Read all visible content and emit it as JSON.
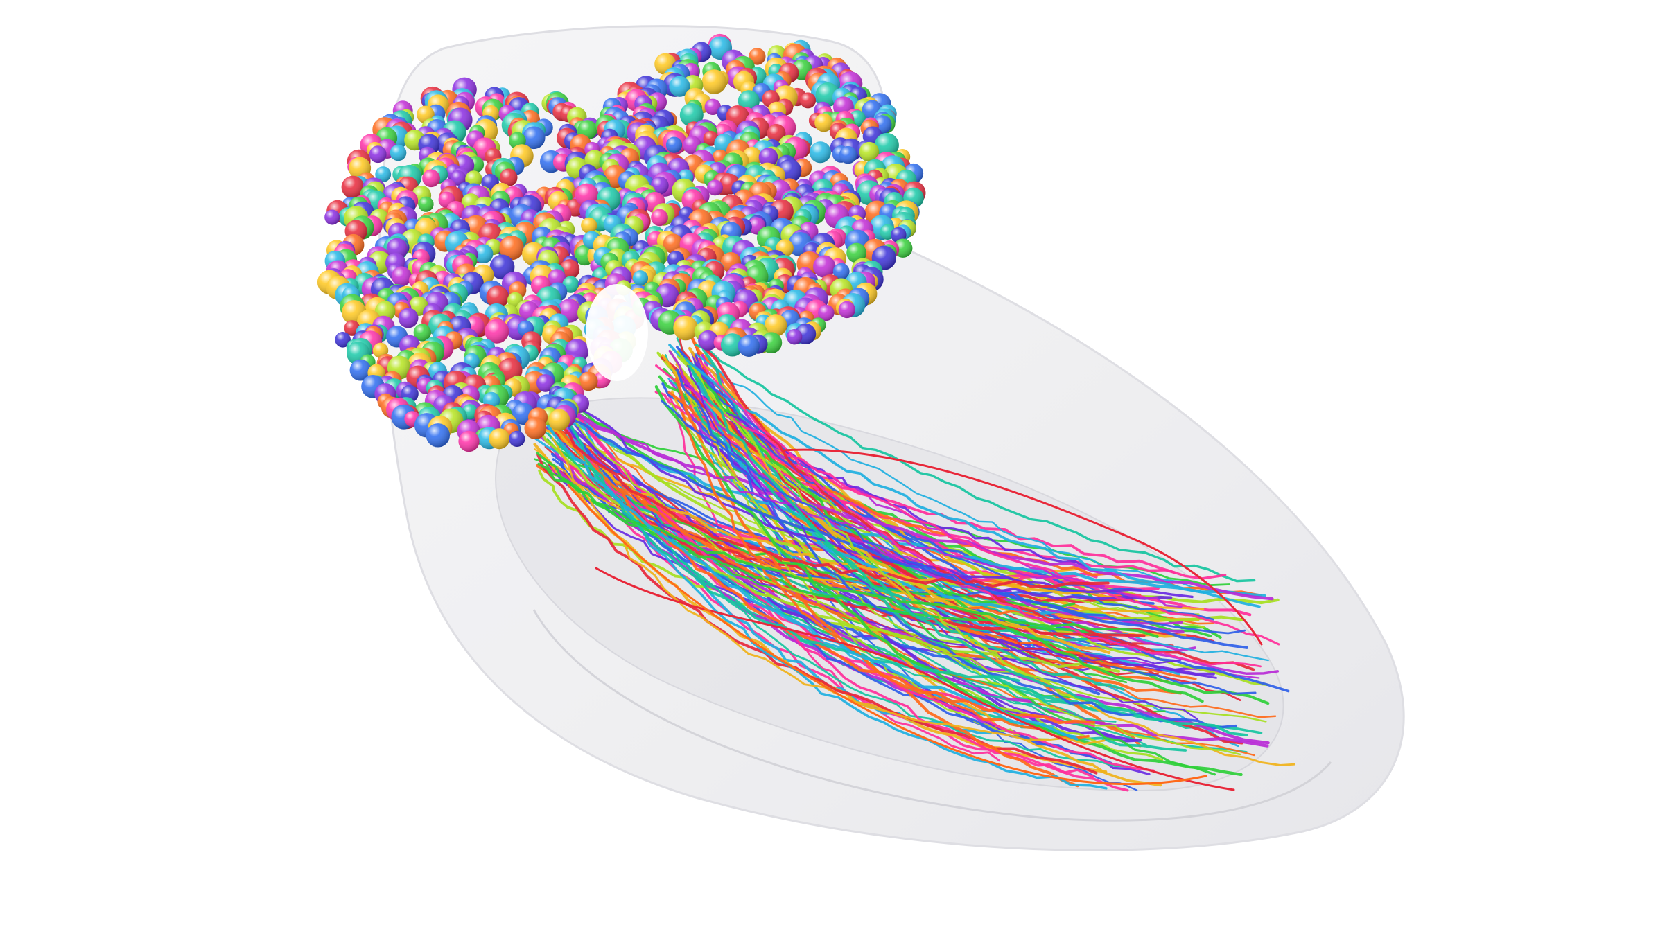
{
  "scene": {
    "background": "#ffffff",
    "hull_fill": "#e9e9ec",
    "hull_stroke": "#d2d2d8",
    "inner_fill": "#dedee3",
    "sphere_palette": [
      "#e8283a",
      "#ff6a1a",
      "#ffc81e",
      "#b6e51f",
      "#36d13a",
      "#18c9a8",
      "#24b8e6",
      "#2c6cf0",
      "#3a2fd8",
      "#8a2be2",
      "#c22ad6",
      "#ff2fa8"
    ],
    "fiber_palette": [
      "#e8283a",
      "#ff6a1a",
      "#f0b21a",
      "#a6e01f",
      "#2fcf3a",
      "#16c4a0",
      "#1fb0e0",
      "#2f5fe8",
      "#6a2be2",
      "#b82ad6",
      "#ff2f9a"
    ]
  }
}
